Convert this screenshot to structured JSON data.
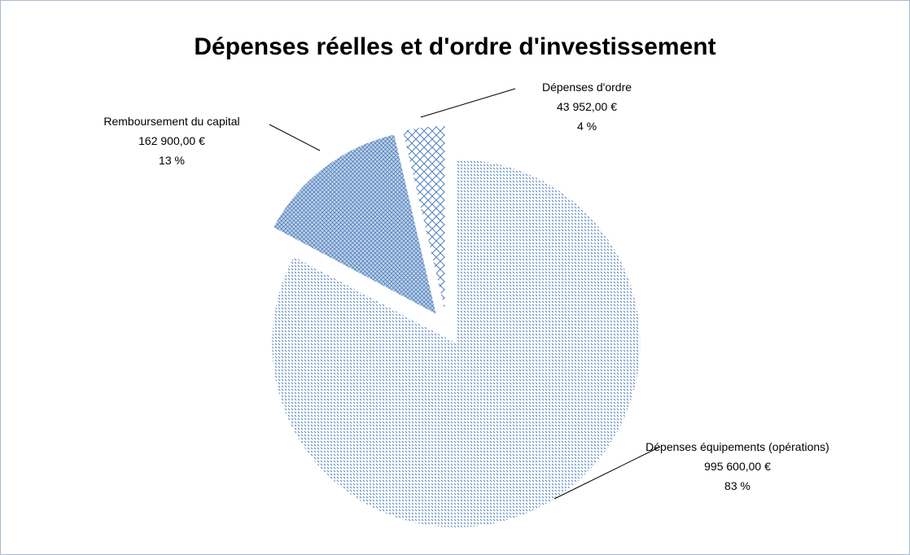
{
  "chart_data": {
    "type": "pie",
    "title": "Dépenses réelles et d'ordre d'investissement",
    "categories": [
      "Dépenses équipements (opérations)",
      "Remboursement  du capital",
      "Dépenses d'ordre"
    ],
    "values": [
      995600,
      162900,
      43952
    ],
    "value_labels": [
      "995 600,00 €",
      "162 900,00 €",
      "43 952,00 €"
    ],
    "percent_labels": [
      "83 %",
      "13 %",
      "4 %"
    ],
    "color": "#4f81bd"
  }
}
